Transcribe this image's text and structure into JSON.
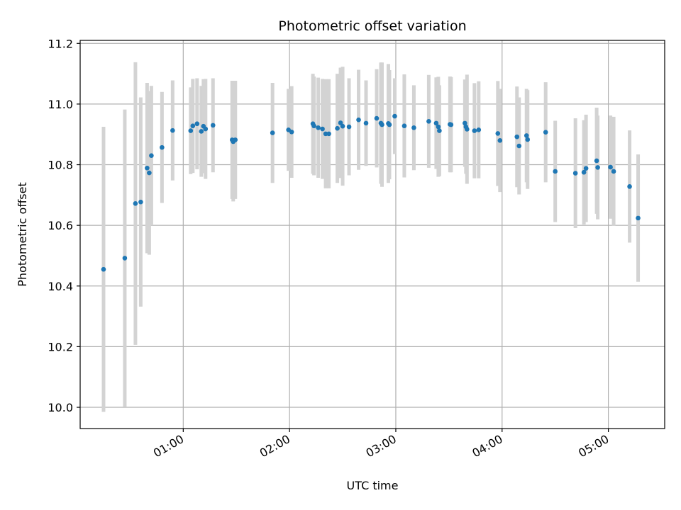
{
  "chart_data": {
    "type": "scatter",
    "title": "Photometric offset variation",
    "xlabel": "UTC time",
    "ylabel": "Photometric offset",
    "x_unit": "hours UTC",
    "xlim": [
      0.03,
      5.53
    ],
    "ylim": [
      9.93,
      11.21
    ],
    "x_ticks": [
      {
        "value": 1,
        "label": "01:00"
      },
      {
        "value": 2,
        "label": "02:00"
      },
      {
        "value": 3,
        "label": "03:00"
      },
      {
        "value": 4,
        "label": "04:00"
      },
      {
        "value": 5,
        "label": "05:00"
      }
    ],
    "y_ticks": [
      {
        "value": 10.0,
        "label": "10.0"
      },
      {
        "value": 10.2,
        "label": "10.2"
      },
      {
        "value": 10.4,
        "label": "10.4"
      },
      {
        "value": 10.6,
        "label": "10.6"
      },
      {
        "value": 10.8,
        "label": "10.8"
      },
      {
        "value": 11.0,
        "label": "11.0"
      },
      {
        "value": 11.2,
        "label": "11.2"
      }
    ],
    "grid": true,
    "colors": {
      "marker": "#1f77b4",
      "errorbar": "#d3d3d3",
      "grid": "#b0b0b0"
    },
    "series": [
      {
        "x": [
          0.25,
          0.45,
          0.55,
          0.6,
          0.66,
          0.68,
          0.7,
          0.8,
          0.9,
          1.07,
          1.09,
          1.13,
          1.17,
          1.19,
          1.21,
          1.28,
          1.46,
          1.47,
          1.49,
          1.84,
          1.99,
          2.02,
          2.22,
          2.23,
          2.27,
          2.31,
          2.34,
          2.37,
          2.45,
          2.48,
          2.5,
          2.56,
          2.65,
          2.72,
          2.82,
          2.86,
          2.87,
          2.93,
          2.94,
          2.99,
          3.08,
          3.17,
          3.31,
          3.38,
          3.4,
          3.41,
          3.51,
          3.52,
          3.65,
          3.66,
          3.67,
          3.74,
          3.78,
          3.96,
          3.98,
          4.14,
          4.16,
          4.23,
          4.24,
          4.41,
          4.5,
          4.69,
          4.77,
          4.79,
          4.89,
          4.9,
          5.02,
          5.05,
          5.2,
          5.28
        ],
        "y": [
          10.455,
          10.492,
          10.672,
          10.677,
          10.789,
          10.773,
          10.83,
          10.857,
          10.913,
          10.912,
          10.928,
          10.935,
          10.91,
          10.927,
          10.918,
          10.93,
          10.882,
          10.876,
          10.882,
          10.905,
          10.915,
          10.908,
          10.935,
          10.928,
          10.922,
          10.918,
          10.902,
          10.902,
          10.92,
          10.938,
          10.927,
          10.925,
          10.948,
          10.937,
          10.953,
          10.937,
          10.932,
          10.936,
          10.932,
          10.96,
          10.928,
          10.922,
          10.943,
          10.937,
          10.925,
          10.912,
          10.933,
          10.932,
          10.937,
          10.925,
          10.917,
          10.912,
          10.915,
          10.903,
          10.88,
          10.892,
          10.862,
          10.896,
          10.883,
          10.907,
          10.778,
          10.772,
          10.775,
          10.788,
          10.813,
          10.791,
          10.792,
          10.778,
          10.728,
          10.624
        ],
        "err": [
          0.47,
          0.49,
          0.466,
          0.345,
          0.281,
          0.27,
          0.23,
          0.183,
          0.165,
          0.143,
          0.155,
          0.15,
          0.15,
          0.155,
          0.165,
          0.155,
          0.195,
          0.197,
          0.195,
          0.165,
          0.135,
          0.151,
          0.165,
          0.163,
          0.165,
          0.165,
          0.18,
          0.18,
          0.18,
          0.182,
          0.196,
          0.16,
          0.165,
          0.141,
          0.162,
          0.2,
          0.205,
          0.196,
          0.18,
          0.125,
          0.17,
          0.14,
          0.153,
          0.151,
          0.165,
          0.15,
          0.158,
          0.157,
          0.144,
          0.155,
          0.18,
          0.157,
          0.16,
          0.173,
          0.17,
          0.166,
          0.16,
          0.154,
          0.163,
          0.165,
          0.167,
          0.181,
          0.172,
          0.177,
          0.175,
          0.171,
          0.17,
          0.18,
          0.185,
          0.21
        ]
      }
    ]
  }
}
